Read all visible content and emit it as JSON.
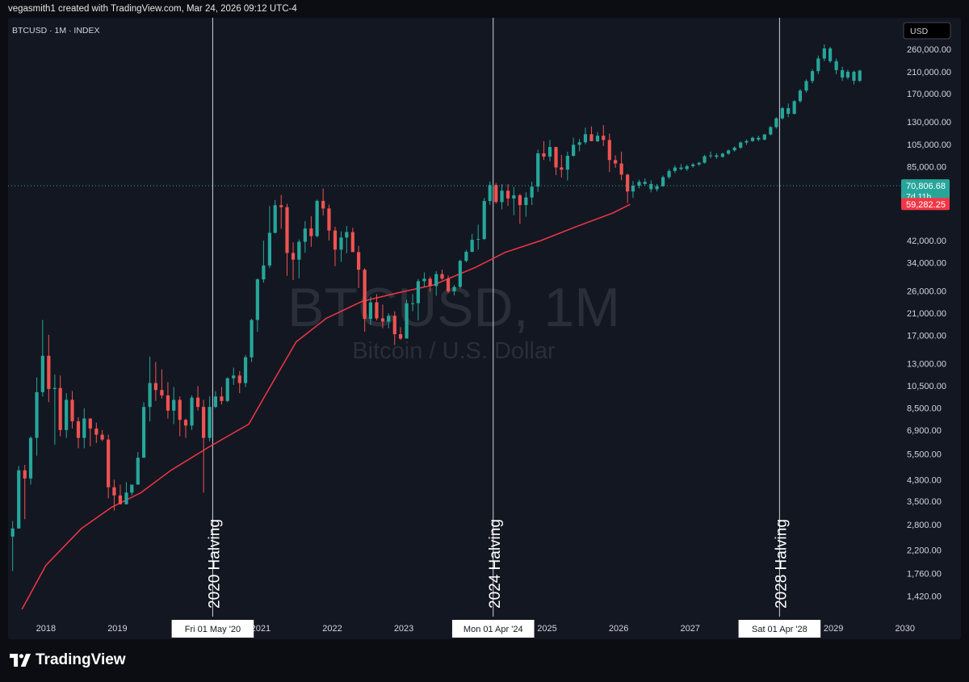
{
  "header": {
    "credit": "vegasmith1 created with TradingView.com, Mar 24, 2026 09:12 UTC-4"
  },
  "legend": {
    "symbol": "BTCUSD · 1M · INDEX"
  },
  "currency_button": {
    "label": "USD"
  },
  "watermark": {
    "symbol": "BTCUSD, 1M",
    "description": "Bitcoin / U.S. Dollar"
  },
  "price_labels": {
    "current": "70,806.68",
    "countdown": "7d 11h",
    "ma": "59,282.25"
  },
  "colors": {
    "up": "#26a69a",
    "down": "#ef5350",
    "projection": "#26a69a",
    "ma": "#f23645",
    "background": "#131722",
    "text": "#d1d4dc"
  },
  "footer": {
    "brand": "TradingView"
  },
  "chart_data": {
    "type": "line",
    "scale": "log",
    "y_ticks": [
      "260,000.00",
      "210,000.00",
      "170,000.00",
      "130,000.00",
      "105,000.00",
      "85,000.00",
      "42,000.00",
      "34,000.00",
      "26,000.00",
      "21,000.00",
      "17,000.00",
      "13,000.00",
      "10,500.00",
      "8,500.00",
      "6,900.00",
      "5,500.00",
      "4,300.00",
      "3,500.00",
      "2,800.00",
      "2,200.00",
      "1,760.00",
      "1,420.00"
    ],
    "ylim": [
      1230,
      320000
    ],
    "x_ticks": [
      "2018",
      "2019",
      "2021",
      "2022",
      "2023",
      "2025",
      "2026",
      "2027",
      "2029",
      "2030"
    ],
    "xlim": [
      "2017-06-22",
      "2030-07-23"
    ],
    "series": [
      {
        "name": "BTCUSD",
        "kind": "candles",
        "start": "2017-07-01",
        "ohlc": [
          [
            2500,
            2900,
            1800,
            2700
          ],
          [
            2700,
            4900,
            2700,
            4700
          ],
          [
            4700,
            4950,
            2950,
            4350
          ],
          [
            4350,
            6500,
            4100,
            6400
          ],
          [
            6400,
            11400,
            5400,
            9900
          ],
          [
            9900,
            19700,
            9500,
            14000
          ],
          [
            14000,
            17100,
            9000,
            10200
          ],
          [
            10200,
            11700,
            6000,
            10300
          ],
          [
            10300,
            11600,
            6500,
            6900
          ],
          [
            6900,
            9800,
            6400,
            9200
          ],
          [
            9200,
            10000,
            7000,
            7500
          ],
          [
            7500,
            7800,
            5800,
            6400
          ],
          [
            6400,
            8500,
            5800,
            7700
          ],
          [
            7700,
            7700,
            5900,
            7000
          ],
          [
            7000,
            7400,
            6100,
            6600
          ],
          [
            6600,
            6900,
            6200,
            6300
          ],
          [
            6300,
            6600,
            3600,
            4000
          ],
          [
            4000,
            4300,
            3200,
            3700
          ],
          [
            3700,
            4100,
            3400,
            3400
          ],
          [
            3400,
            4200,
            3400,
            3800
          ],
          [
            3800,
            4100,
            3700,
            4100
          ],
          [
            4100,
            5600,
            4100,
            5300
          ],
          [
            5300,
            9000,
            5300,
            8600
          ],
          [
            8600,
            13900,
            7500,
            10800
          ],
          [
            10800,
            13200,
            9100,
            10100
          ],
          [
            10100,
            12300,
            9300,
            9600
          ],
          [
            9600,
            10900,
            7700,
            8300
          ],
          [
            8300,
            10400,
            7300,
            9200
          ],
          [
            9200,
            9500,
            6500,
            7600
          ],
          [
            7600,
            7700,
            6400,
            7200
          ],
          [
            7200,
            9600,
            6900,
            9400
          ],
          [
            9400,
            10500,
            8300,
            8600
          ],
          [
            8600,
            9200,
            3800,
            6400
          ],
          [
            6400,
            9500,
            6200,
            8600
          ],
          [
            8600,
            10000,
            8500,
            9500
          ],
          [
            9500,
            10400,
            8800,
            9100
          ],
          [
            9100,
            11400,
            9000,
            11300
          ],
          [
            11300,
            12500,
            10600,
            11600
          ],
          [
            11600,
            12100,
            9800,
            10800
          ],
          [
            10800,
            14100,
            10400,
            13800
          ],
          [
            13800,
            19900,
            13200,
            19700
          ],
          [
            19700,
            29300,
            17600,
            29000
          ],
          [
            29000,
            41900,
            28100,
            33100
          ],
          [
            33100,
            58300,
            32300,
            45200
          ],
          [
            45200,
            61800,
            44900,
            58800
          ],
          [
            58800,
            64900,
            47000,
            57700
          ],
          [
            57700,
            59600,
            30000,
            37300
          ],
          [
            37300,
            41300,
            28800,
            35000
          ],
          [
            35000,
            42400,
            29300,
            41500
          ],
          [
            41500,
            50500,
            37400,
            47100
          ],
          [
            47100,
            52900,
            39600,
            43800
          ],
          [
            43800,
            62000,
            43300,
            61300
          ],
          [
            61300,
            69000,
            53300,
            57000
          ],
          [
            57000,
            59100,
            42000,
            46200
          ],
          [
            46200,
            47900,
            32900,
            38500
          ],
          [
            38500,
            45800,
            34300,
            43200
          ],
          [
            43200,
            48200,
            37200,
            45500
          ],
          [
            45500,
            47400,
            37700,
            37600
          ],
          [
            37600,
            39900,
            26700,
            31800
          ],
          [
            31800,
            32300,
            17600,
            19900
          ],
          [
            19900,
            24600,
            18800,
            23300
          ],
          [
            23300,
            25200,
            19600,
            20000
          ],
          [
            20000,
            22800,
            18200,
            19400
          ],
          [
            19400,
            21000,
            18200,
            20500
          ],
          [
            20500,
            21400,
            15500,
            17200
          ],
          [
            17200,
            18400,
            16300,
            16500
          ],
          [
            16500,
            23900,
            16500,
            23100
          ],
          [
            23100,
            25200,
            21400,
            23100
          ],
          [
            23100,
            29100,
            19600,
            28500
          ],
          [
            28500,
            31000,
            26900,
            29200
          ],
          [
            29200,
            29800,
            25800,
            27200
          ],
          [
            27200,
            31400,
            24800,
            30500
          ],
          [
            30500,
            31800,
            28900,
            29200
          ],
          [
            29200,
            30100,
            25400,
            25900
          ],
          [
            25900,
            27500,
            24900,
            27000
          ],
          [
            27000,
            35000,
            26600,
            34600
          ],
          [
            34600,
            38400,
            34100,
            37700
          ],
          [
            37700,
            44700,
            37600,
            42300
          ],
          [
            42300,
            48900,
            38500,
            42600
          ],
          [
            42600,
            63000,
            42200,
            61200
          ],
          [
            61200,
            73700,
            59000,
            71300
          ],
          [
            71300,
            72700,
            59700,
            60600
          ],
          [
            60600,
            71900,
            56500,
            67500
          ],
          [
            67500,
            71900,
            58400,
            62700
          ],
          [
            62700,
            70000,
            53500,
            64600
          ],
          [
            64600,
            65600,
            49200,
            58900
          ],
          [
            58900,
            66500,
            52700,
            63300
          ],
          [
            63300,
            73600,
            58900,
            70200
          ],
          [
            70200,
            99800,
            66800,
            96400
          ],
          [
            96400,
            108300,
            90500,
            93400
          ],
          [
            93400,
            109500,
            89300,
            102400
          ],
          [
            102400,
            102600,
            78300,
            84300
          ],
          [
            84300,
            95000,
            76600,
            82500
          ],
          [
            82500,
            97900,
            74400,
            94200
          ],
          [
            94200,
            111900,
            93300,
            104600
          ],
          [
            104600,
            110600,
            98300,
            107100
          ],
          [
            107100,
            123100,
            105200,
            115700
          ],
          [
            115700,
            124500,
            108700,
            108200
          ],
          [
            108200,
            117900,
            107300,
            114000
          ],
          [
            114000,
            126200,
            103300,
            109500
          ],
          [
            109500,
            116400,
            80600,
            90400
          ],
          [
            90400,
            94600,
            84000,
            87500
          ],
          [
            87500,
            97900,
            74600,
            78700
          ],
          [
            78700,
            79300,
            60000,
            67000
          ],
          [
            67000,
            74000,
            63000,
            70806.68
          ]
        ]
      },
      {
        "name": "Projection",
        "kind": "candles",
        "start": "2026-04-01",
        "ohlc": [
          [
            70806.68,
            75000,
            69000,
            73500
          ],
          [
            73500,
            76000,
            71000,
            72000
          ],
          [
            72000,
            74500,
            66500,
            68500
          ],
          [
            68500,
            72000,
            67000,
            70500
          ],
          [
            70500,
            78000,
            70000,
            76800
          ],
          [
            76800,
            83000,
            75500,
            81500
          ],
          [
            81500,
            86000,
            80000,
            84200
          ],
          [
            84200,
            87000,
            82000,
            83000
          ],
          [
            83000,
            86500,
            81500,
            85300
          ],
          [
            85300,
            88000,
            84000,
            86700
          ],
          [
            86700,
            89000,
            85500,
            88100
          ],
          [
            88100,
            95000,
            87500,
            93800
          ],
          [
            93800,
            98000,
            92000,
            94500
          ],
          [
            94500,
            96500,
            91500,
            93200
          ],
          [
            93200,
            97000,
            92500,
            96100
          ],
          [
            96100,
            100000,
            95000,
            99200
          ],
          [
            99200,
            103000,
            98000,
            101800
          ],
          [
            101800,
            108000,
            100500,
            106900
          ],
          [
            106900,
            110000,
            104500,
            108400
          ],
          [
            108400,
            113000,
            107500,
            111800
          ],
          [
            111800,
            114000,
            108000,
            109900
          ],
          [
            109900,
            116000,
            109000,
            115400
          ],
          [
            115400,
            125000,
            114500,
            123800
          ],
          [
            123800,
            136000,
            122000,
            134600
          ],
          [
            134600,
            150000,
            133000,
            148200
          ],
          [
            148200,
            155000,
            136000,
            140500
          ],
          [
            140500,
            160000,
            139500,
            158500
          ],
          [
            158500,
            178000,
            156000,
            175300
          ],
          [
            175300,
            195000,
            172000,
            192000
          ],
          [
            192000,
            215000,
            188000,
            211000
          ],
          [
            211000,
            245000,
            205000,
            238000
          ],
          [
            238000,
            272000,
            232000,
            262000
          ],
          [
            262000,
            266000,
            228000,
            232000
          ],
          [
            232000,
            238000,
            205000,
            213000
          ],
          [
            213000,
            220000,
            192000,
            198500
          ],
          [
            198500,
            214000,
            195000,
            209800
          ],
          [
            209800,
            212000,
            186000,
            192500
          ],
          [
            192500,
            214000,
            190000,
            212000
          ]
        ]
      },
      {
        "name": "Moving Average",
        "kind": "line",
        "points": [
          [
            "2017-09-01",
            1250
          ],
          [
            "2018-01-01",
            1900
          ],
          [
            "2018-07-01",
            2700
          ],
          [
            "2018-12-01",
            3300
          ],
          [
            "2019-05-01",
            3800
          ],
          [
            "2019-10-01",
            4700
          ],
          [
            "2020-04-01",
            5800
          ],
          [
            "2020-11-01",
            7300
          ],
          [
            "2021-03-01",
            10800
          ],
          [
            "2021-07-01",
            16000
          ],
          [
            "2021-12-01",
            20000
          ],
          [
            "2022-06-01",
            23500
          ],
          [
            "2022-12-01",
            25500
          ],
          [
            "2023-06-01",
            27500
          ],
          [
            "2024-01-01",
            32500
          ],
          [
            "2024-06-01",
            37500
          ],
          [
            "2024-12-01",
            42000
          ],
          [
            "2025-06-01",
            48000
          ],
          [
            "2025-12-01",
            54500
          ],
          [
            "2026-03-01",
            59282.25
          ]
        ]
      }
    ],
    "events": [
      {
        "date": "2020-05-01",
        "label": "2020 Halving",
        "tag": "Fri 01 May '20"
      },
      {
        "date": "2024-04-01",
        "label": "2024 Halving",
        "tag": "Mon 01 Apr '24"
      },
      {
        "date": "2028-04-01",
        "label": "2028 Halving",
        "tag": "Sat 01 Apr '28"
      }
    ]
  }
}
